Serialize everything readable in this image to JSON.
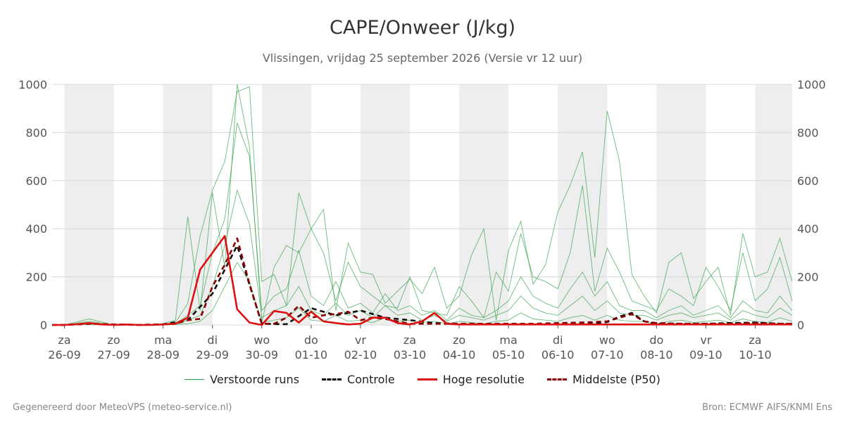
{
  "chart_data": {
    "type": "line",
    "title": "CAPE/Onweer (J/kg)",
    "subtitle": "Vlissingen, vrijdag 25 september 2026 (Versie vr 12 uur)",
    "ylim": [
      0,
      1000
    ],
    "yticks": [
      0,
      200,
      400,
      600,
      800,
      1000
    ],
    "xlim": [
      -0.25,
      14.75
    ],
    "grid": true,
    "legend_position": "bottom",
    "days": [
      {
        "day": "za",
        "date": "26-09"
      },
      {
        "day": "zo",
        "date": "27-09"
      },
      {
        "day": "ma",
        "date": "28-09"
      },
      {
        "day": "di",
        "date": "29-09"
      },
      {
        "day": "wo",
        "date": "30-09"
      },
      {
        "day": "do",
        "date": "01-10"
      },
      {
        "day": "vr",
        "date": "02-10"
      },
      {
        "day": "za",
        "date": "03-10"
      },
      {
        "day": "zo",
        "date": "04-10"
      },
      {
        "day": "ma",
        "date": "05-10"
      },
      {
        "day": "di",
        "date": "06-10"
      },
      {
        "day": "wo",
        "date": "07-10"
      },
      {
        "day": "do",
        "date": "08-10"
      },
      {
        "day": "vr",
        "date": "09-10"
      },
      {
        "day": "za",
        "date": "10-10"
      }
    ],
    "shaded_days": [
      0,
      2,
      4,
      6,
      8,
      10,
      12,
      14
    ],
    "series": [
      {
        "name": "Hoge resolutie",
        "color": "#dd1111",
        "x": [
          -0.25,
          0,
          0.25,
          0.5,
          0.75,
          1,
          1.25,
          1.5,
          1.75,
          2,
          2.25,
          2.5,
          2.75,
          3,
          3.25,
          3.5,
          3.75,
          4,
          4.25,
          4.5,
          4.75,
          5,
          5.25,
          5.5,
          5.75,
          6,
          6.25,
          6.5,
          6.75,
          7,
          7.25,
          7.5,
          7.75,
          8,
          8.5,
          9,
          9.5,
          10,
          10.5,
          11,
          11.5,
          12,
          12.5,
          13,
          13.5,
          14,
          14.5,
          14.75
        ],
        "values": [
          0,
          0,
          3,
          8,
          2,
          0,
          2,
          0,
          0,
          2,
          5,
          30,
          230,
          300,
          370,
          65,
          10,
          0,
          58,
          50,
          10,
          55,
          15,
          8,
          2,
          5,
          30,
          30,
          8,
          2,
          15,
          50,
          5,
          2,
          2,
          2,
          2,
          2,
          2,
          2,
          2,
          2,
          2,
          2,
          2,
          2,
          2,
          2
        ]
      },
      {
        "name": "Controle",
        "color": "#111111",
        "x": [
          -0.25,
          0,
          0.5,
          1,
          1.5,
          2,
          2.5,
          3,
          3.5,
          4,
          4.5,
          5,
          5.5,
          6,
          6.5,
          7,
          7.5,
          8,
          8.5,
          9,
          9.5,
          10,
          10.25,
          10.5,
          10.75,
          11,
          11.25,
          11.5,
          11.75,
          12,
          12.5,
          13,
          13.5,
          14,
          14.5,
          14.75
        ],
        "values": [
          0,
          0,
          5,
          2,
          0,
          3,
          20,
          130,
          330,
          5,
          3,
          70,
          40,
          60,
          30,
          20,
          8,
          5,
          3,
          5,
          3,
          5,
          8,
          10,
          8,
          12,
          35,
          50,
          15,
          5,
          5,
          5,
          8,
          10,
          5,
          5
        ]
      },
      {
        "name": "Middelste (P50)",
        "color": "#8b0000",
        "x": [
          -0.25,
          0,
          0.5,
          1,
          1.5,
          2,
          2.25,
          2.5,
          2.75,
          3,
          3.25,
          3.5,
          3.75,
          4,
          4.25,
          4.5,
          4.75,
          5,
          5.25,
          5.5,
          5.75,
          6,
          6.25,
          6.5,
          6.75,
          7,
          7.5,
          8,
          8.5,
          9,
          9.5,
          10,
          10.5,
          11,
          11.25,
          11.5,
          11.75,
          12,
          12.5,
          13,
          13.5,
          14,
          14.5,
          14.75
        ],
        "values": [
          0,
          0,
          5,
          2,
          0,
          2,
          5,
          20,
          25,
          160,
          250,
          360,
          170,
          5,
          5,
          30,
          80,
          30,
          40,
          45,
          55,
          20,
          30,
          25,
          15,
          5,
          5,
          5,
          5,
          5,
          5,
          8,
          10,
          15,
          30,
          45,
          15,
          8,
          5,
          5,
          5,
          8,
          5,
          5
        ]
      },
      {
        "name": "Verstoorde runs",
        "color": "#2e9e44",
        "note_members": "ensemble envelope samples",
        "x": [
          -0.25,
          0,
          0.5,
          1,
          1.5,
          2,
          2.25,
          2.5,
          2.75,
          3,
          3.25,
          3.5,
          3.75,
          4,
          4.25,
          4.5,
          4.75,
          5,
          5.25,
          5.5,
          5.75,
          6,
          6.25,
          6.5,
          6.75,
          7,
          7.25,
          7.5,
          7.75,
          8,
          8.25,
          8.5,
          8.75,
          9,
          9.25,
          9.5,
          9.75,
          10,
          10.25,
          10.5,
          10.75,
          11,
          11.25,
          11.5,
          11.75,
          12,
          12.25,
          12.5,
          12.75,
          13,
          13.25,
          13.5,
          13.75,
          14,
          14.25,
          14.5,
          14.75
        ],
        "members": [
          [
            0,
            0,
            25,
            0,
            0,
            5,
            20,
            450,
            60,
            550,
            240,
            1000,
            740,
            10,
            240,
            330,
            300,
            400,
            480,
            60,
            340,
            220,
            210,
            90,
            140,
            190,
            130,
            240,
            70,
            120,
            290,
            400,
            20,
            310,
            430,
            170,
            250,
            470,
            580,
            720,
            280,
            890,
            680,
            210,
            120,
            50,
            260,
            300,
            110,
            180,
            240,
            40,
            380,
            200,
            220,
            360,
            180
          ],
          [
            0,
            0,
            15,
            0,
            0,
            3,
            10,
            90,
            370,
            560,
            680,
            970,
            990,
            180,
            210,
            80,
            550,
            400,
            300,
            100,
            260,
            160,
            120,
            80,
            70,
            200,
            60,
            50,
            40,
            160,
            100,
            30,
            220,
            140,
            380,
            200,
            180,
            150,
            300,
            580,
            140,
            320,
            220,
            100,
            80,
            60,
            150,
            120,
            80,
            240,
            160,
            60,
            300,
            100,
            150,
            280,
            100
          ],
          [
            0,
            0,
            8,
            0,
            0,
            2,
            5,
            40,
            80,
            300,
            440,
            840,
            700,
            60,
            120,
            150,
            310,
            120,
            80,
            180,
            70,
            90,
            50,
            130,
            60,
            80,
            40,
            60,
            20,
            70,
            40,
            30,
            60,
            100,
            200,
            120,
            90,
            70,
            150,
            220,
            120,
            180,
            80,
            60,
            60,
            30,
            60,
            80,
            40,
            60,
            80,
            30,
            100,
            60,
            50,
            120,
            60
          ],
          [
            0,
            0,
            5,
            0,
            0,
            1,
            3,
            20,
            40,
            160,
            330,
            560,
            420,
            30,
            60,
            80,
            160,
            60,
            40,
            90,
            40,
            60,
            30,
            80,
            40,
            50,
            20,
            40,
            15,
            40,
            30,
            20,
            40,
            60,
            120,
            70,
            50,
            40,
            80,
            120,
            60,
            100,
            50,
            40,
            40,
            20,
            40,
            50,
            30,
            40,
            50,
            20,
            60,
            40,
            30,
            70,
            40
          ],
          [
            0,
            0,
            2,
            0,
            0,
            0,
            2,
            5,
            15,
            60,
            160,
            260,
            180,
            10,
            20,
            30,
            70,
            20,
            15,
            40,
            15,
            20,
            10,
            30,
            15,
            20,
            10,
            15,
            5,
            15,
            10,
            5,
            15,
            20,
            50,
            25,
            20,
            15,
            30,
            40,
            20,
            40,
            20,
            15,
            15,
            5,
            15,
            20,
            10,
            15,
            20,
            10,
            25,
            15,
            10,
            30,
            15
          ]
        ]
      }
    ],
    "legend": [
      {
        "label": "Verstoorde runs",
        "color": "#2e9e44",
        "style": "thin"
      },
      {
        "label": "Controle",
        "color": "#111111",
        "style": "dashed"
      },
      {
        "label": "Hoge resolutie",
        "color": "#dd1111",
        "style": "solid"
      },
      {
        "label": "Middelste (P50)",
        "color": "#8b0000",
        "style": "dashed"
      }
    ]
  },
  "footer": {
    "left": "Gegenereerd door MeteoVPS (meteo-service.nl)",
    "right": "Bron: ECMWF AIFS/KNMI Ens"
  }
}
